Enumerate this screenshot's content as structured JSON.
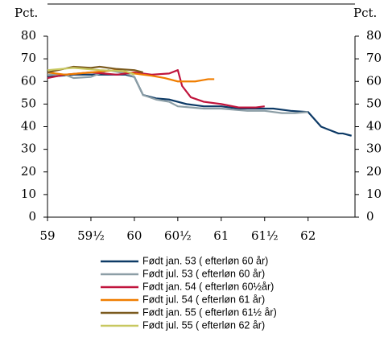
{
  "chart_data": {
    "type": "line",
    "y_label": "Pct.",
    "y2_label": "Pct.",
    "xlim": [
      59,
      62.54
    ],
    "xticks": [
      59,
      {
        "value": 59.5,
        "label": "59½"
      },
      60,
      {
        "value": 60.5,
        "label": "60½"
      },
      61,
      {
        "value": 61.5,
        "label": "61½"
      },
      62
    ],
    "ylim": [
      0,
      80
    ],
    "yticks": [
      0,
      10,
      20,
      30,
      40,
      50,
      60,
      70,
      80
    ],
    "y2lim": [
      0,
      80
    ],
    "y2ticks": [
      0,
      10,
      20,
      30,
      40,
      50,
      60,
      70,
      80
    ],
    "grid": false,
    "legend": "bottom",
    "series": [
      {
        "name": "Født jan. 53 ( efterløn 60 år)",
        "color": "#0d3a66",
        "x": [
          59,
          59.3,
          59.9,
          60,
          60.1,
          60.25,
          60.4,
          60.6,
          60.8,
          61,
          61.2,
          61.5,
          61.6,
          61.8,
          62,
          62.15,
          62.25,
          62.35,
          62.4,
          62.5
        ],
        "values": [
          62,
          63,
          63,
          62,
          54,
          52.5,
          52,
          50,
          49,
          49,
          48,
          48,
          48,
          47,
          46.5,
          40,
          38.5,
          37,
          37,
          36
        ]
      },
      {
        "name": "Født jul. 53 ( efterløn 60 år)",
        "color": "#8c9ea6",
        "x": [
          59,
          59.2,
          59.3,
          59.5,
          59.7,
          59.9,
          60,
          60.1,
          60.25,
          60.4,
          60.5,
          60.8,
          61,
          61.3,
          61.5,
          61.7,
          61.85,
          62
        ],
        "values": [
          63,
          63,
          61.5,
          62,
          65,
          63.5,
          62,
          54,
          52,
          51,
          49,
          48,
          48,
          47,
          47,
          46,
          46,
          46.5
        ]
      },
      {
        "name": "Født jan. 54 ( efterløn 60½år)",
        "color": "#c0143c",
        "x": [
          59,
          59.2,
          59.5,
          59.8,
          60,
          60.2,
          60.4,
          60.5,
          60.55,
          60.65,
          60.8,
          61,
          61.2,
          61.4,
          61.5
        ],
        "values": [
          61.5,
          63,
          64,
          63,
          64,
          63,
          63.5,
          65,
          58,
          53,
          51,
          50,
          48.5,
          48.5,
          49
        ]
      },
      {
        "name": "Født jul. 54 ( efterløn 61 år)",
        "color": "#f07d00",
        "x": [
          59,
          59.2,
          59.5,
          59.8,
          60,
          60.2,
          60.35,
          60.5,
          60.7,
          60.85,
          60.92
        ],
        "values": [
          64,
          63,
          64,
          65,
          63.5,
          62.5,
          61.5,
          60,
          60,
          61,
          61
        ]
      },
      {
        "name": "Født jan. 55 ( efterløn 61½ år)",
        "color": "#7b5a1e",
        "x": [
          59,
          59.3,
          59.5,
          59.6,
          59.8,
          60,
          60.1
        ],
        "values": [
          64,
          66.5,
          66,
          66.5,
          65.5,
          65,
          64
        ]
      },
      {
        "name": "Født jul. 55 ( efterløn 62 år)",
        "color": "#c8c860",
        "x": [
          59,
          59.3,
          59.6,
          59.9,
          60
        ],
        "values": [
          65,
          66,
          65,
          64.5,
          63
        ]
      }
    ]
  }
}
